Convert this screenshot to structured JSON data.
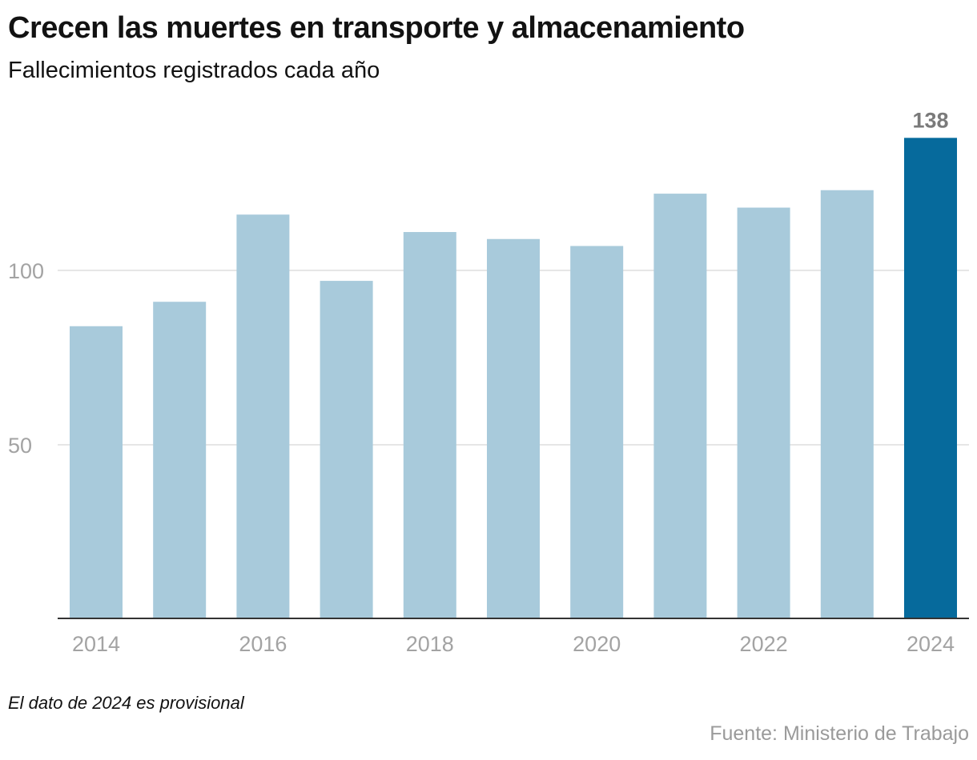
{
  "header": {
    "title": "Crecen las muertes en transporte y almacenamiento",
    "subtitle": "Fallecimientos registrados cada año"
  },
  "footer": {
    "note": "El dato de 2024 es provisional",
    "source": "Fuente: Ministerio de Trabajo"
  },
  "colors": {
    "bar": "#a8cadb",
    "highlight": "#066a9c",
    "grid": "#e6e6e6",
    "axis": "#333333"
  },
  "chart_data": {
    "type": "bar",
    "title": "Crecen las muertes en transporte y almacenamiento",
    "subtitle": "Fallecimientos registrados cada año",
    "xlabel": "",
    "ylabel": "",
    "categories": [
      "2014",
      "2015",
      "2016",
      "2017",
      "2018",
      "2019",
      "2020",
      "2021",
      "2022",
      "2023",
      "2024"
    ],
    "values": [
      84,
      91,
      116,
      97,
      111,
      109,
      107,
      122,
      118,
      123,
      138
    ],
    "highlighted": [
      "2024"
    ],
    "data_labels": [
      {
        "category": "2024",
        "text": "138"
      }
    ],
    "x_tick_labels": [
      "2014",
      "2016",
      "2018",
      "2020",
      "2022",
      "2024"
    ],
    "y_ticks": [
      50,
      100
    ],
    "y_tick_labels": [
      "50",
      "100"
    ],
    "ylim": [
      0,
      140
    ],
    "grid": true,
    "legend": "none"
  }
}
